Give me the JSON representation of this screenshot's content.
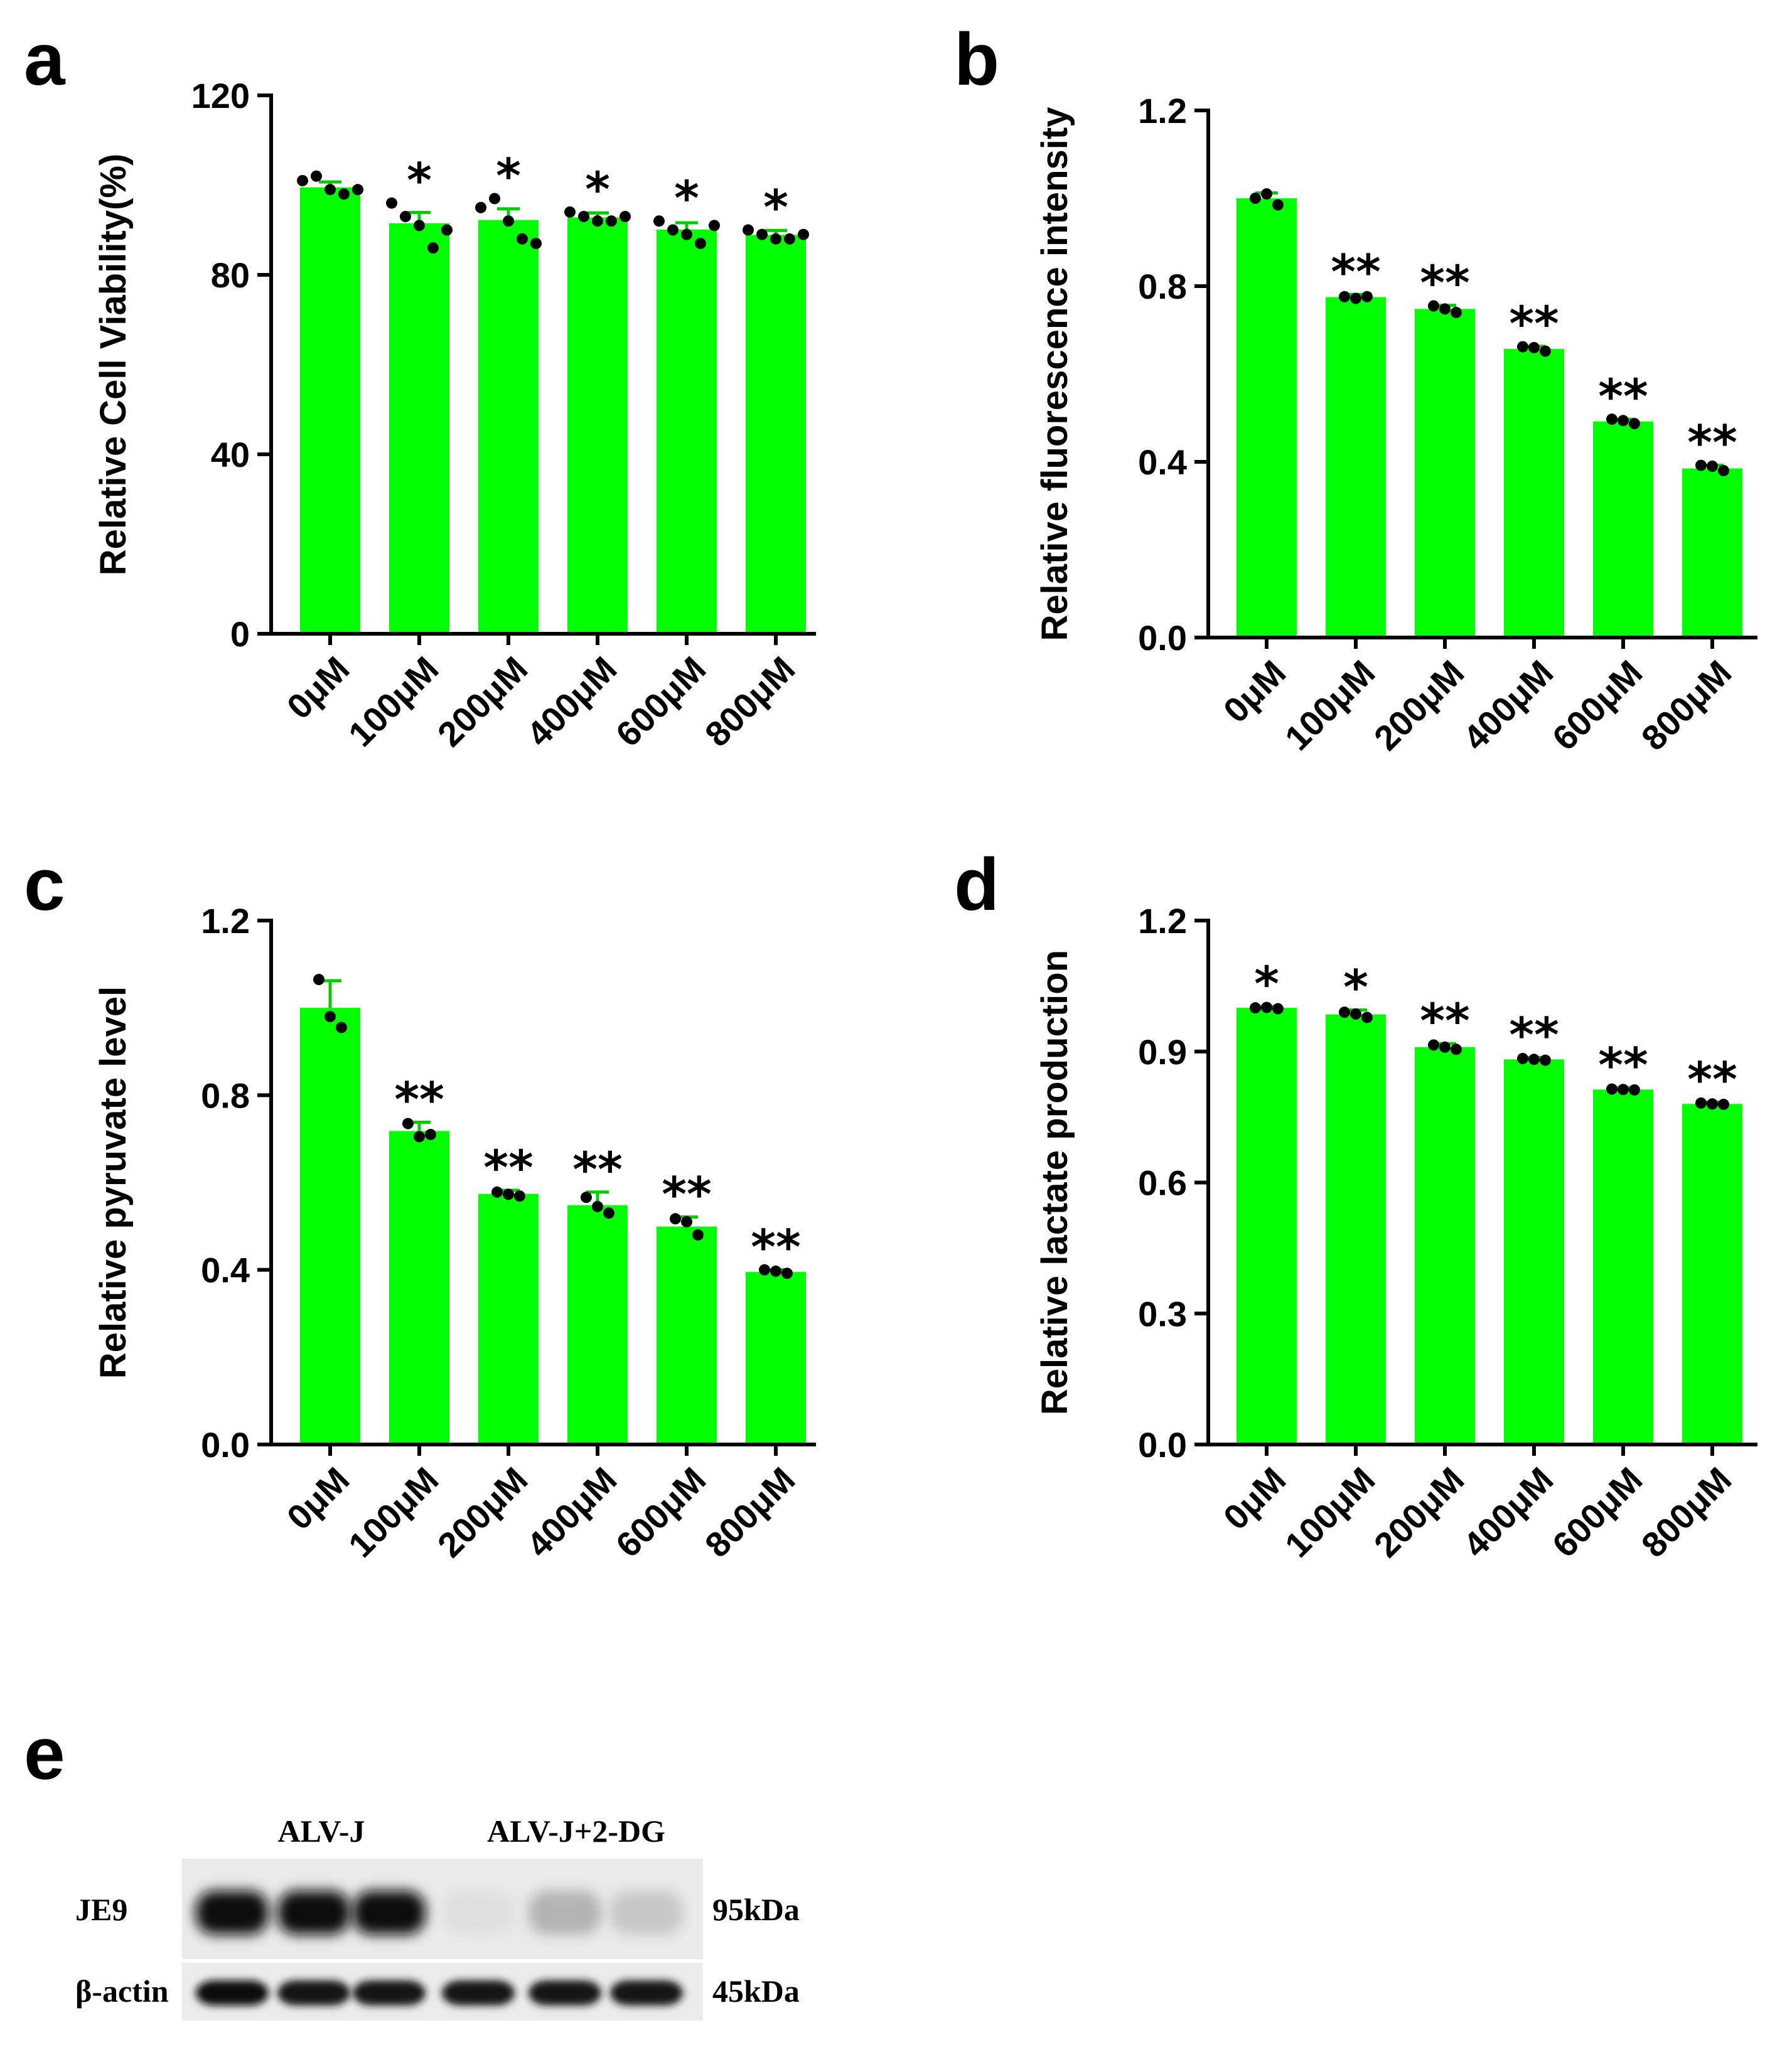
{
  "colors": {
    "bar": "#00ff00",
    "error": "#00cc00",
    "dot": "#000000",
    "axis": "#000000"
  },
  "chart_data": [
    {
      "panel": "a",
      "type": "bar",
      "ylabel": "Relative Cell Viability(%)",
      "ylim": [
        0,
        120
      ],
      "yticks": [
        0,
        40,
        80,
        120
      ],
      "tick_decimals": 0,
      "categories": [
        "0μM",
        "100μM",
        "200μM",
        "400μM",
        "600μM",
        "800μM"
      ],
      "values": [
        99.5,
        91.5,
        92.2,
        92.8,
        90.1,
        88.9
      ],
      "errors": [
        1.2,
        2.4,
        2.5,
        1.0,
        1.5,
        1.0
      ],
      "points": [
        [
          101,
          102,
          99,
          98,
          99
        ],
        [
          96,
          93,
          91,
          86,
          90
        ],
        [
          95,
          97,
          92,
          88,
          87
        ],
        [
          94,
          93,
          92,
          92,
          93
        ],
        [
          92,
          90,
          89,
          87,
          91
        ],
        [
          90,
          89,
          88,
          88,
          89
        ]
      ],
      "significance": [
        "",
        "*",
        "*",
        "*",
        "*",
        "*"
      ]
    },
    {
      "panel": "b",
      "type": "bar",
      "ylabel": "Relative fluorescence intensity",
      "ylim": [
        0,
        1.2
      ],
      "yticks": [
        0.0,
        0.4,
        0.8,
        1.2
      ],
      "tick_decimals": 1,
      "categories": [
        "0μM",
        "100μM",
        "200μM",
        "400μM",
        "600μM",
        "800μM"
      ],
      "values": [
        1.0,
        0.775,
        0.748,
        0.657,
        0.492,
        0.385
      ],
      "errors": [
        0.012,
        0.006,
        0.008,
        0.006,
        0.005,
        0.007
      ],
      "points": [
        [
          1.0,
          1.01,
          0.985
        ],
        [
          0.776,
          0.772,
          0.776
        ],
        [
          0.755,
          0.748,
          0.74
        ],
        [
          0.662,
          0.66,
          0.652
        ],
        [
          0.497,
          0.494,
          0.487
        ],
        [
          0.392,
          0.39,
          0.38
        ]
      ],
      "significance": [
        "",
        "**",
        "**",
        "**",
        "**",
        "**"
      ]
    },
    {
      "panel": "c",
      "type": "bar",
      "ylabel": "Relative pyruvate level",
      "ylim": [
        0,
        1.2
      ],
      "yticks": [
        0.0,
        0.4,
        0.8,
        1.2
      ],
      "tick_decimals": 1,
      "categories": [
        "0μM",
        "100μM",
        "200μM",
        "400μM",
        "600μM",
        "800μM"
      ],
      "values": [
        1.0,
        0.718,
        0.574,
        0.548,
        0.499,
        0.395
      ],
      "errors": [
        0.062,
        0.02,
        0.008,
        0.03,
        0.022,
        0.005
      ],
      "points": [
        [
          1.065,
          0.98,
          0.955
        ],
        [
          0.735,
          0.705,
          0.71
        ],
        [
          0.578,
          0.573,
          0.569
        ],
        [
          0.566,
          0.545,
          0.53
        ],
        [
          0.517,
          0.51,
          0.48
        ],
        [
          0.4,
          0.397,
          0.392
        ]
      ],
      "significance": [
        "",
        "**",
        "**",
        "**",
        "**",
        "**"
      ]
    },
    {
      "panel": "d",
      "type": "bar",
      "ylabel": "Relative lactate production",
      "ylim": [
        0,
        1.2
      ],
      "yticks": [
        0.0,
        0.3,
        0.6,
        0.9,
        1.2
      ],
      "tick_decimals": 1,
      "categories": [
        "0μM",
        "100μM",
        "200μM",
        "400μM",
        "600μM",
        "800μM"
      ],
      "values": [
        1.0,
        0.985,
        0.91,
        0.882,
        0.813,
        0.78
      ],
      "errors": [
        0.003,
        0.01,
        0.008,
        0.004,
        0.004,
        0.004
      ],
      "points": [
        [
          1.0,
          1.001,
          0.998
        ],
        [
          0.99,
          0.986,
          0.978
        ],
        [
          0.915,
          0.91,
          0.905
        ],
        [
          0.884,
          0.882,
          0.88
        ],
        [
          0.814,
          0.813,
          0.812
        ],
        [
          0.782,
          0.78,
          0.779
        ]
      ],
      "significance": [
        "*",
        "*",
        "**",
        "**",
        "**",
        "**"
      ]
    }
  ],
  "blot": {
    "panel": "e",
    "groups": [
      "ALV-J",
      "ALV-J+2-DG"
    ],
    "rows": [
      {
        "label": "JE9",
        "size": "95kDa",
        "intensities": [
          0.95,
          0.95,
          0.95,
          0.12,
          0.3,
          0.22
        ]
      },
      {
        "label": "β-actin",
        "size": "45kDa",
        "intensities": [
          0.95,
          0.9,
          0.9,
          0.92,
          0.9,
          0.9
        ]
      }
    ]
  }
}
